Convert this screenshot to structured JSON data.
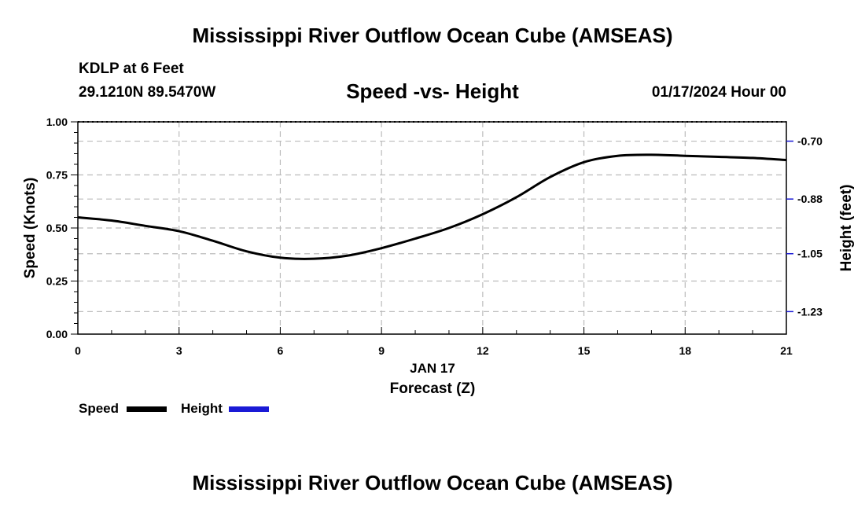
{
  "header": {
    "title": "Mississippi River Outflow Ocean Cube (AMSEAS)",
    "station": "KDLP at 6 Feet",
    "coords": "29.1210N  89.5470W",
    "datetime": "01/17/2024 Hour 00"
  },
  "footer": {
    "title": "Mississippi River Outflow Ocean Cube (AMSEAS)"
  },
  "chart_data": {
    "type": "line",
    "title": "Speed -vs- Height",
    "xlabel": "Forecast (Z)",
    "xdate": "JAN 17",
    "ylabel": "Speed (Knots)",
    "y2label": "Height (feet)",
    "xlim": [
      0,
      21
    ],
    "ylim": [
      0,
      1.0
    ],
    "y2lim": [
      -1.3,
      -0.64
    ],
    "xticks": [
      0,
      3,
      6,
      9,
      12,
      15,
      18,
      21
    ],
    "yticks": [
      0.0,
      0.25,
      0.5,
      0.75,
      1.0
    ],
    "ytick_labels": [
      "0.00",
      "0.25",
      "0.50",
      "0.75",
      "1.00"
    ],
    "y2ticks": [
      -0.7,
      -0.88,
      -1.05,
      -1.23
    ],
    "y2tick_labels": [
      "-0.70",
      "-0.88",
      "-1.05",
      "-1.23"
    ],
    "grid": true,
    "series": [
      {
        "name": "Speed",
        "color": "#000000",
        "x": [
          0,
          1,
          2,
          3,
          4,
          5,
          6,
          7,
          8,
          9,
          10,
          11,
          12,
          13,
          14,
          15,
          16,
          17,
          18,
          19,
          20,
          21
        ],
        "values": [
          0.55,
          0.535,
          0.51,
          0.485,
          0.44,
          0.39,
          0.36,
          0.355,
          0.37,
          0.405,
          0.45,
          0.5,
          0.565,
          0.645,
          0.74,
          0.81,
          0.84,
          0.845,
          0.84,
          0.835,
          0.83,
          0.82
        ]
      },
      {
        "name": "Height",
        "color": "#1a1ad6",
        "x": [],
        "values": []
      }
    ],
    "legend": [
      {
        "label": "Speed",
        "color": "#000000"
      },
      {
        "label": "Height",
        "color": "#1a1ad6"
      }
    ]
  }
}
